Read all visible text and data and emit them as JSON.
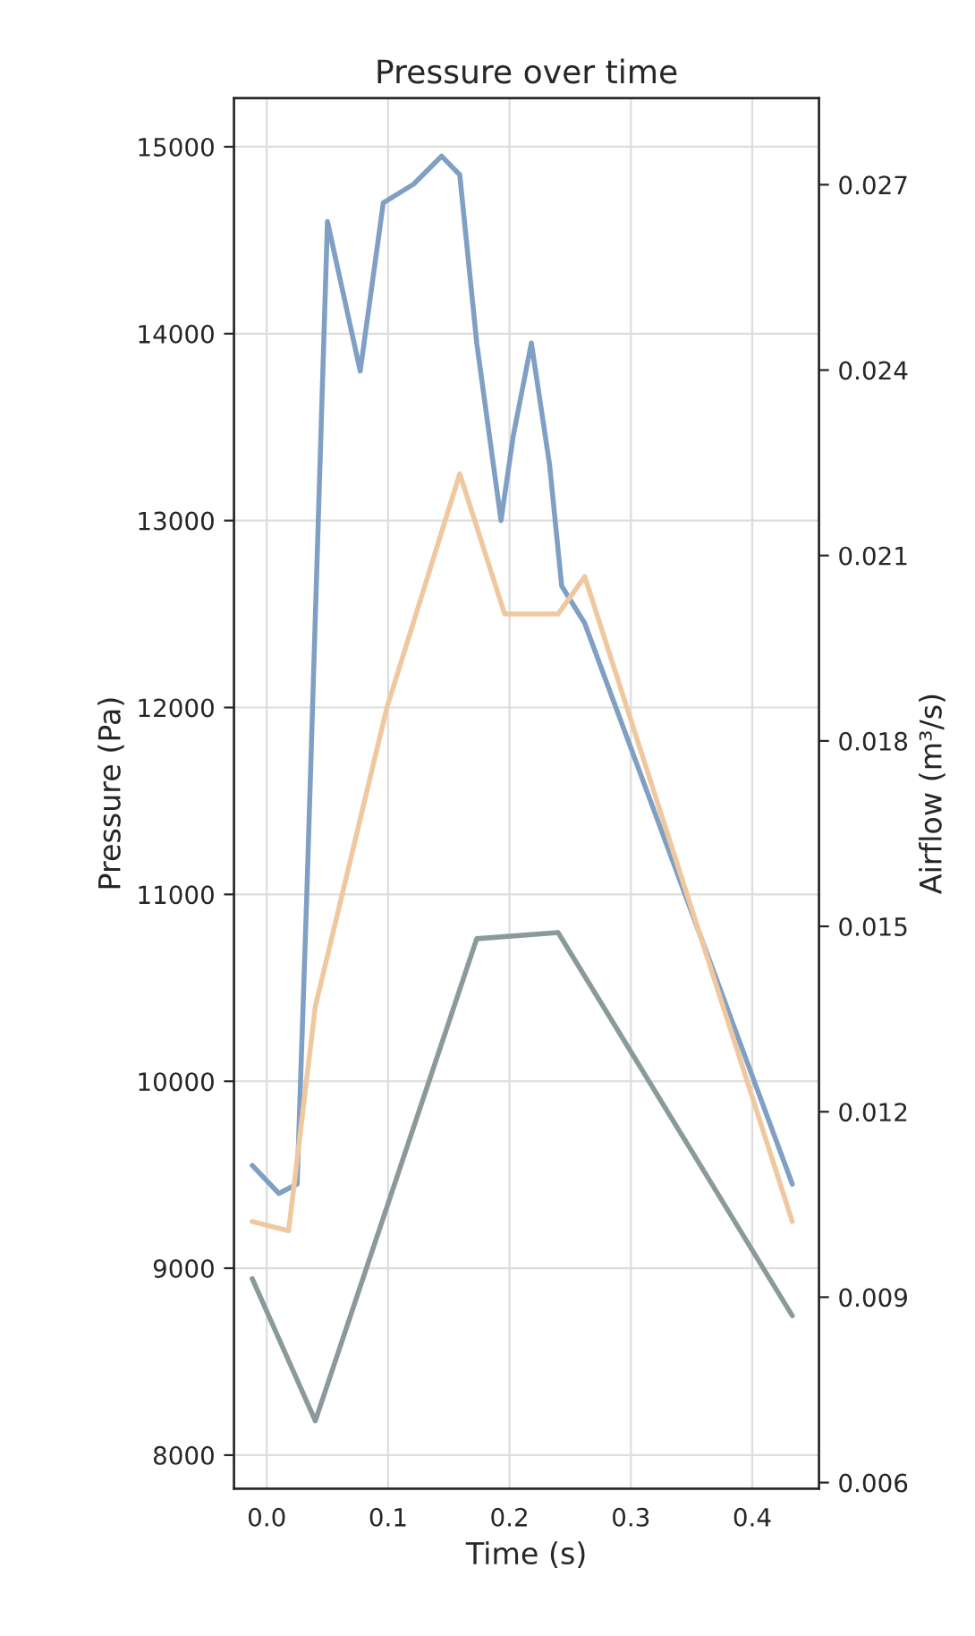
{
  "chart_data": {
    "type": "line",
    "title": "Pressure over time",
    "xlabel": "Time (s)",
    "ylabel": "Pressure (Pa)",
    "y2label": "Airflow (m³/s)",
    "xlim": [
      -0.027,
      0.455
    ],
    "xticks": [
      {
        "value": 0,
        "label": "0.0"
      },
      0.1,
      0.2,
      0.3,
      0.4
    ],
    "ylim": [
      7820,
      15260
    ],
    "yticks": [
      8000,
      9000,
      10000,
      11000,
      12000,
      13000,
      14000,
      15000
    ],
    "y2lim": [
      0.0059,
      0.0284
    ],
    "y2ticks": [
      0.006,
      0.009,
      0.012,
      0.015,
      0.018,
      0.021,
      0.024,
      0.027
    ],
    "grid": true,
    "line_style": "solid",
    "series": [
      {
        "color": "#7f9fc4",
        "x": [
          -0.012,
          0.01,
          0.025,
          0.033,
          0.05,
          0.077,
          0.096,
          0.121,
          0.144,
          0.159,
          0.173,
          0.193,
          0.203,
          0.218,
          0.233,
          0.243,
          0.262,
          0.433
        ],
        "values": [
          9550,
          9400,
          9450,
          11000,
          14600,
          13800,
          14700,
          14800,
          14950,
          14850,
          13950,
          13000,
          13450,
          13950,
          13300,
          12650,
          12450,
          9450
        ]
      },
      {
        "color": "#f0c8a0",
        "x": [
          -0.012,
          0.018,
          0.04,
          0.099,
          0.159,
          0.196,
          0.24,
          0.262,
          0.433
        ],
        "values": [
          9250,
          9200,
          10400,
          12000,
          13250,
          12500,
          12500,
          12700,
          9250
        ]
      },
      {
        "color": "#8a9a9a",
        "axis": "y2",
        "x": [
          -0.012,
          0.04,
          0.173,
          0.24,
          0.433
        ],
        "values": [
          0.0093,
          0.007,
          0.0148,
          0.0149,
          0.0087
        ]
      }
    ]
  }
}
